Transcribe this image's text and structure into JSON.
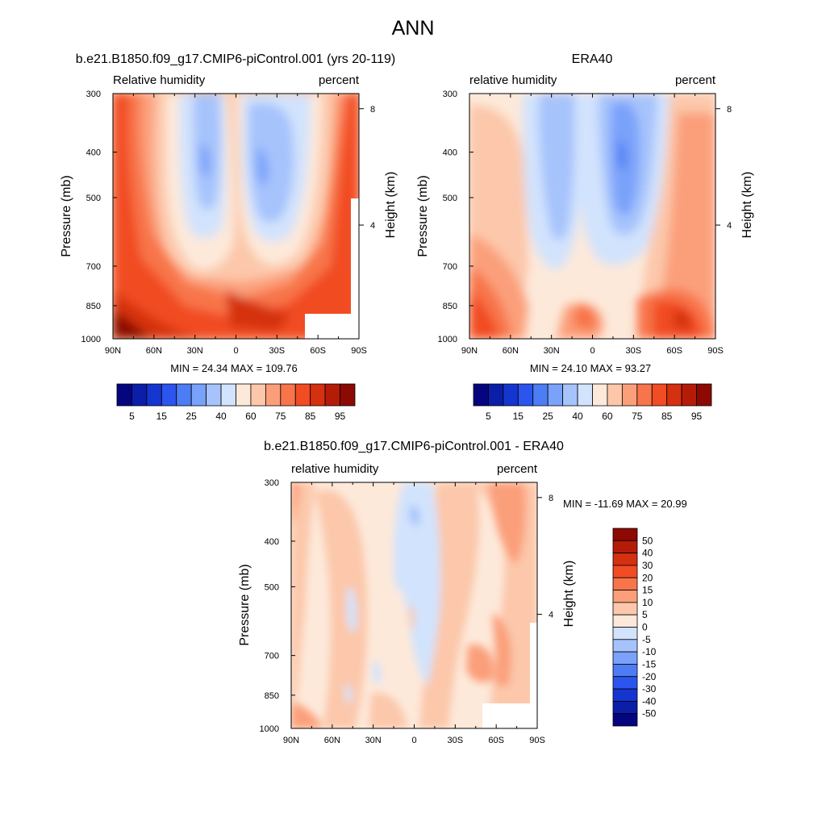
{
  "figure_title": "ANN",
  "chart_data": [
    {
      "type": "heatmap",
      "title": "b.e21.B1850.f09_g17.CMIP6-piControl.001 (yrs 20-119)",
      "left_label": "Relative humidity",
      "right_label": "percent",
      "ylabel": "Pressure (mb)",
      "ylabel_right": "Height (km)",
      "x_ticks": [
        "90N",
        "60N",
        "30N",
        "0",
        "30S",
        "60S",
        "90S"
      ],
      "x_values": [
        90,
        60,
        30,
        0,
        -30,
        -60,
        -90
      ],
      "y_ticks": [
        "300",
        "400",
        "500",
        "700",
        "850",
        "1000"
      ],
      "y_values": [
        300,
        400,
        500,
        700,
        850,
        1000
      ],
      "height_ticks": [
        "8",
        "4"
      ],
      "height_values_km": [
        8,
        4
      ],
      "min_max_text": "MIN =  24.34  MAX = 109.76",
      "stats": {
        "min": 24.34,
        "max": 109.76
      },
      "colorbar": {
        "orientation": "horizontal",
        "levels": [
          5,
          10,
          15,
          20,
          25,
          30,
          40,
          50,
          60,
          70,
          75,
          80,
          85,
          90,
          95
        ],
        "labels": [
          "5",
          "15",
          "25",
          "40",
          "60",
          "75",
          "85",
          "95"
        ],
        "colors": [
          "#050580",
          "#0a1ea8",
          "#1535d0",
          "#2b55ee",
          "#4d7df5",
          "#7aa2fa",
          "#a6c3fc",
          "#d2e3fd",
          "#fde9da",
          "#fcc7aa",
          "#fb9f7a",
          "#f8744a",
          "#f14c24",
          "#d5300f",
          "#b51c08",
          "#8c0a03"
        ]
      }
    },
    {
      "type": "heatmap",
      "title": "ERA40",
      "left_label": "relative humidity",
      "right_label": "percent",
      "ylabel": "Pressure (mb)",
      "ylabel_right": "Height (km)",
      "x_ticks": [
        "90N",
        "60N",
        "30N",
        "0",
        "30S",
        "60S",
        "90S"
      ],
      "x_values": [
        90,
        60,
        30,
        0,
        -30,
        -60,
        -90
      ],
      "y_ticks": [
        "300",
        "400",
        "500",
        "700",
        "850",
        "1000"
      ],
      "y_values": [
        300,
        400,
        500,
        700,
        850,
        1000
      ],
      "height_ticks": [
        "8",
        "4"
      ],
      "height_values_km": [
        8,
        4
      ],
      "min_max_text": "MIN =  24.10  MAX =  93.27",
      "stats": {
        "min": 24.1,
        "max": 93.27
      },
      "colorbar": {
        "orientation": "horizontal",
        "levels": [
          5,
          10,
          15,
          20,
          25,
          30,
          40,
          50,
          60,
          70,
          75,
          80,
          85,
          90,
          95
        ],
        "labels": [
          "5",
          "15",
          "25",
          "40",
          "60",
          "75",
          "85",
          "95"
        ],
        "colors": [
          "#050580",
          "#0a1ea8",
          "#1535d0",
          "#2b55ee",
          "#4d7df5",
          "#7aa2fa",
          "#a6c3fc",
          "#d2e3fd",
          "#fde9da",
          "#fcc7aa",
          "#fb9f7a",
          "#f8744a",
          "#f14c24",
          "#d5300f",
          "#b51c08",
          "#8c0a03"
        ]
      }
    },
    {
      "type": "heatmap",
      "title": "b.e21.B1850.f09_g17.CMIP6-piControl.001 - ERA40",
      "left_label": "relative humidity",
      "right_label": "percent",
      "ylabel": "Pressure (mb)",
      "ylabel_right": "Height (km)",
      "x_ticks": [
        "90N",
        "60N",
        "30N",
        "0",
        "30S",
        "60S",
        "90S"
      ],
      "x_values": [
        90,
        60,
        30,
        0,
        -30,
        -60,
        -90
      ],
      "y_ticks": [
        "300",
        "400",
        "500",
        "700",
        "850",
        "1000"
      ],
      "y_values": [
        300,
        400,
        500,
        700,
        850,
        1000
      ],
      "height_ticks": [
        "8",
        "4"
      ],
      "height_values_km": [
        8,
        4
      ],
      "min_max_text": "MIN = -11.69  MAX =  20.99",
      "stats": {
        "min": -11.69,
        "max": 20.99
      },
      "colorbar": {
        "orientation": "vertical",
        "levels": [
          50,
          40,
          30,
          20,
          15,
          10,
          5,
          0,
          -5,
          -10,
          -15,
          -20,
          -30,
          -40,
          -50
        ],
        "labels": [
          "50",
          "40",
          "30",
          "20",
          "15",
          "10",
          "5",
          "0",
          "-5",
          "-10",
          "-15",
          "-20",
          "-30",
          "-40",
          "-50"
        ],
        "colors": [
          "#8c0a03",
          "#b51c08",
          "#d5300f",
          "#f14c24",
          "#f8744a",
          "#fb9f7a",
          "#fcc7aa",
          "#fde9da",
          "#d2e3fd",
          "#a6c3fc",
          "#7aa2fa",
          "#4d7df5",
          "#2b55ee",
          "#1535d0",
          "#0a1ea8",
          "#050580"
        ]
      }
    }
  ]
}
